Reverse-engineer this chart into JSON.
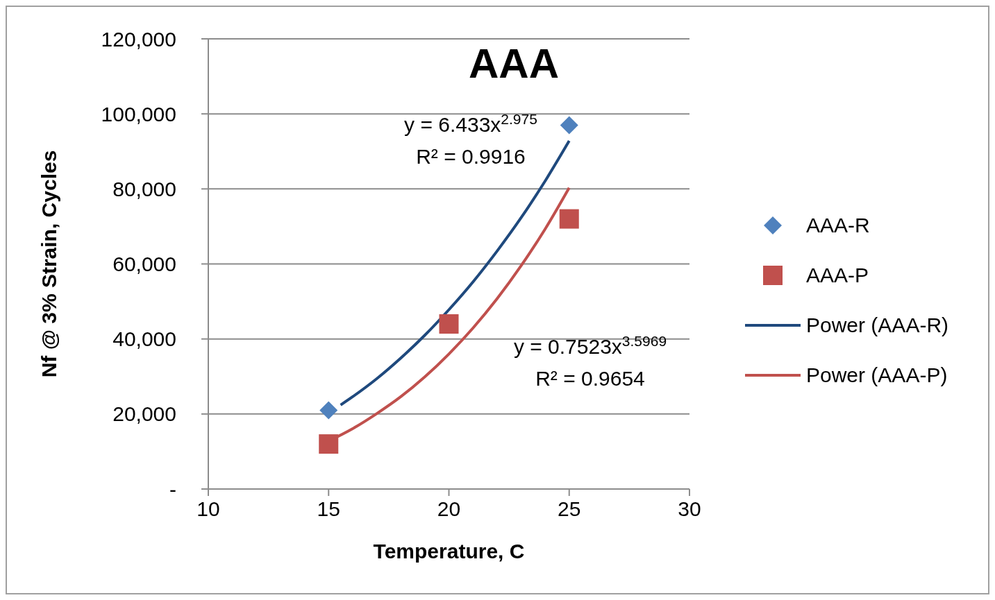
{
  "chart_data": {
    "type": "scatter",
    "title": "AAA",
    "xlabel": "Temperature, C",
    "ylabel": "Nf @ 3% Strain, Cycles",
    "x": [
      15,
      20,
      25
    ],
    "series": [
      {
        "name": "AAA-R",
        "color": "#4f81bd",
        "marker": "diamond",
        "values": [
          21000,
          null,
          97000
        ]
      },
      {
        "name": "AAA-P",
        "color": "#c0504d",
        "marker": "square",
        "values": [
          12000,
          44000,
          72000
        ]
      },
      {
        "name": "Power (AAA-R)",
        "type": "line",
        "color": "#1f497d",
        "marker": "none",
        "x": [
          15.5,
          16,
          17,
          18,
          19,
          20,
          21,
          22,
          23,
          24,
          25
        ],
        "values": [
          22400,
          24600,
          29400,
          34900,
          41000,
          47800,
          55200,
          63400,
          72300,
          82100,
          92800
        ]
      },
      {
        "name": "Power (AAA-P)",
        "type": "line",
        "color": "#c0504d",
        "marker": "none",
        "x": [
          15,
          16,
          17,
          18,
          19,
          20,
          21,
          22,
          23,
          24,
          25
        ],
        "values": [
          12800,
          16100,
          20100,
          24600,
          29900,
          36000,
          42900,
          50700,
          59500,
          69300,
          80300
        ]
      }
    ],
    "xlim": [
      10,
      30
    ],
    "xticks": [
      10,
      15,
      20,
      25,
      30
    ],
    "ylim": [
      0,
      120000
    ],
    "yticks": [
      {
        "value": 0,
        "label": "-"
      },
      {
        "value": 20000,
        "label": "20,000"
      },
      {
        "value": 40000,
        "label": "40,000"
      },
      {
        "value": 60000,
        "label": "60,000"
      },
      {
        "value": 80000,
        "label": "80,000"
      },
      {
        "value": 100000,
        "label": "100,000"
      },
      {
        "value": 120000,
        "label": "120,000"
      }
    ],
    "grid": "y",
    "legend": "right",
    "line_style": "solid",
    "annotations": [
      "y = 6.433x$^{2.975}$\nR² = 0.9916",
      "y = 0.7523x$^{3.5969}$\nR² = 0.9654"
    ]
  }
}
